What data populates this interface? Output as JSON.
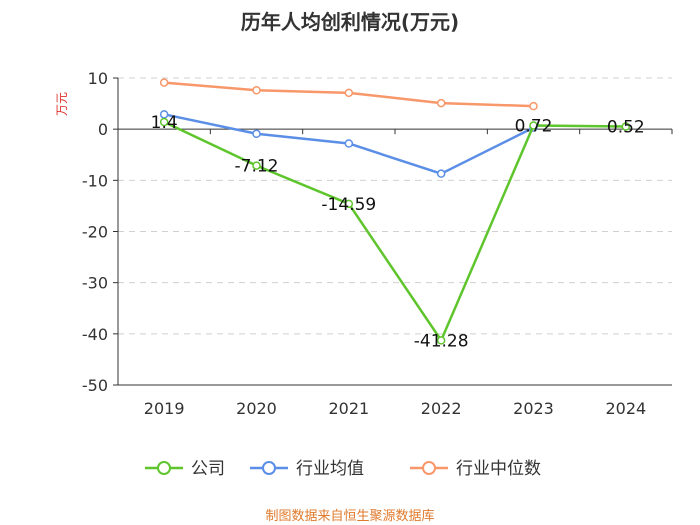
{
  "chart_data": {
    "type": "line",
    "title": "历年人均创利情况(万元)",
    "ylabel": "万元",
    "xlabel": "",
    "categories": [
      "2019",
      "2020",
      "2021",
      "2022",
      "2023",
      "2024"
    ],
    "ylim": [
      -50,
      10
    ],
    "yticks": [
      10,
      0,
      -10,
      -20,
      -30,
      -40,
      -50
    ],
    "grid": true,
    "legend_position": "bottom",
    "series": [
      {
        "name": "公司",
        "color": "#5ec52c",
        "values": [
          1.4,
          -7.12,
          -14.59,
          -41.28,
          0.72,
          0.52
        ],
        "labels": [
          "1.4",
          "-7.12",
          "-14.59",
          "-41.28",
          "0.72",
          "0.52"
        ]
      },
      {
        "name": "行业均值",
        "color": "#5b8ee6",
        "values": [
          2.9,
          -0.9,
          -2.8,
          -8.7,
          0.3,
          null
        ]
      },
      {
        "name": "行业中位数",
        "color": "#f7976a",
        "values": [
          9.1,
          7.6,
          7.1,
          5.1,
          4.5,
          null
        ]
      }
    ]
  },
  "footer": "制图数据来自恒生聚源数据库"
}
